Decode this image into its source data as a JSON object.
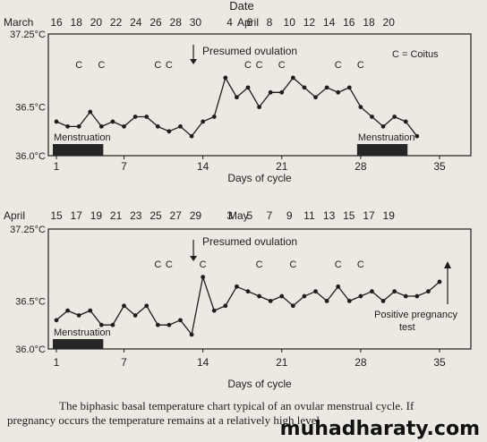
{
  "chart_data": [
    {
      "type": "line",
      "title": "Date",
      "month_labels": [
        "March",
        "April"
      ],
      "date_ticks": [
        "16",
        "18",
        "20",
        "22",
        "24",
        "26",
        "28",
        "30",
        "4",
        "6",
        "8",
        "10",
        "12",
        "14",
        "16",
        "18",
        "20"
      ],
      "ylabel_ticks": [
        "37.25°C",
        "36.5°C",
        "36.0°C"
      ],
      "ylim": [
        36.0,
        37.25
      ],
      "xlabel": "Days of cycle",
      "xticks": [
        1,
        7,
        14,
        21,
        28,
        35
      ],
      "xlim": [
        1,
        35
      ],
      "series": [
        {
          "x": [
            1,
            2,
            3,
            4,
            5,
            6,
            7,
            8,
            9,
            10,
            11,
            12,
            13,
            14,
            15,
            16,
            17,
            18,
            19,
            20,
            21,
            22,
            23,
            24,
            25,
            26,
            27,
            28,
            29,
            30,
            31,
            32,
            33
          ],
          "values": [
            36.35,
            36.3,
            36.3,
            36.45,
            36.3,
            36.35,
            36.3,
            36.4,
            36.4,
            36.3,
            36.25,
            36.3,
            36.2,
            36.35,
            36.4,
            36.8,
            36.6,
            36.7,
            36.5,
            36.65,
            36.65,
            36.8,
            36.7,
            36.6,
            36.7,
            36.65,
            36.7,
            36.5,
            36.4,
            36.3,
            36.4,
            36.35,
            36.2
          ]
        }
      ],
      "coitus_days": [
        3,
        5,
        10,
        11,
        18,
        19,
        21,
        26,
        28
      ],
      "coitus_mark": "C",
      "legend": "C = Coitus",
      "ovulation_day": 13,
      "ovulation_label": "Presumed ovulation",
      "menstruation": [
        {
          "label": "Menstruation",
          "start": 1,
          "end": 5
        },
        {
          "label": "Menstruation",
          "start": 28,
          "end": 32
        }
      ]
    },
    {
      "type": "line",
      "month_labels": [
        "April",
        "May"
      ],
      "date_ticks": [
        "15",
        "17",
        "19",
        "21",
        "23",
        "25",
        "27",
        "29",
        "3",
        "5",
        "7",
        "9",
        "11",
        "13",
        "15",
        "17",
        "19"
      ],
      "ylabel_ticks": [
        "37.25°C",
        "36.5°C",
        "36.0°C"
      ],
      "ylim": [
        36.0,
        37.25
      ],
      "xlabel": "Days of cycle",
      "xticks": [
        1,
        7,
        14,
        21,
        28,
        35
      ],
      "xlim": [
        1,
        35
      ],
      "series": [
        {
          "x": [
            1,
            2,
            3,
            4,
            5,
            6,
            7,
            8,
            9,
            10,
            11,
            12,
            13,
            14,
            15,
            16,
            17,
            18,
            19,
            20,
            21,
            22,
            23,
            24,
            25,
            26,
            27,
            28,
            29,
            30,
            31,
            32,
            33,
            34,
            35
          ],
          "values": [
            36.3,
            36.4,
            36.35,
            36.4,
            36.25,
            36.25,
            36.45,
            36.35,
            36.45,
            36.25,
            36.25,
            36.3,
            36.15,
            36.75,
            36.4,
            36.45,
            36.65,
            36.6,
            36.55,
            36.5,
            36.55,
            36.45,
            36.55,
            36.6,
            36.5,
            36.65,
            36.5,
            36.55,
            36.6,
            36.5,
            36.6,
            36.55,
            36.55,
            36.6,
            36.7
          ]
        }
      ],
      "coitus_days": [
        10,
        11,
        14,
        19,
        22,
        26,
        28
      ],
      "coitus_mark": "C",
      "ovulation_day": 13,
      "ovulation_label": "Presumed ovulation",
      "pregnancy_label": [
        "Positive pregnancy",
        "test"
      ],
      "menstruation": [
        {
          "label": "Menstruation",
          "start": 1,
          "end": 5
        }
      ]
    }
  ],
  "caption": {
    "line1": "The biphasic basal temperature chart typical of an ovular menstrual cycle. If",
    "line2": "pregnancy occurs the temperature remains at a relatively high level"
  },
  "watermark": "muhadharaty.com"
}
